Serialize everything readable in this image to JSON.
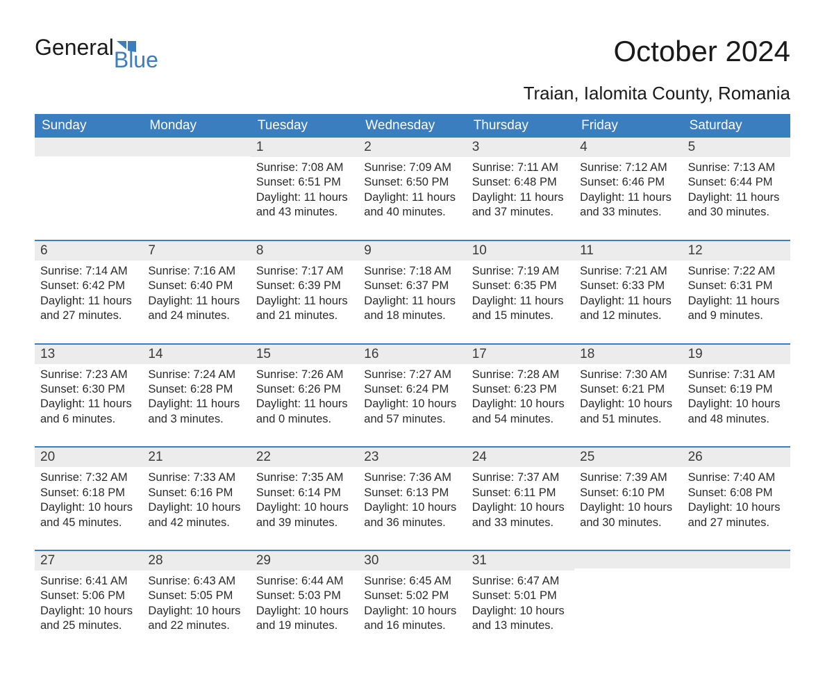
{
  "logo": {
    "part1": "General",
    "part2": "Blue"
  },
  "title": "October 2024",
  "location": "Traian, Ialomita County, Romania",
  "colors": {
    "header_bg": "#3a7ebf",
    "header_text": "#ffffff",
    "daynum_bg": "#ececec",
    "daynum_border": "#3a7ebf",
    "text": "#2a2a2a",
    "logo_blue": "#3a7ebf",
    "page_bg": "#ffffff"
  },
  "typography": {
    "title_fontsize": 42,
    "location_fontsize": 26,
    "logo_fontsize": 32,
    "dayheader_fontsize": 19,
    "daynum_fontsize": 19,
    "body_fontsize": 16.5
  },
  "calendar": {
    "columns": [
      "Sunday",
      "Monday",
      "Tuesday",
      "Wednesday",
      "Thursday",
      "Friday",
      "Saturday"
    ],
    "weeks": [
      [
        {
          "day": "",
          "sunrise": "",
          "sunset": "",
          "daylight": ""
        },
        {
          "day": "",
          "sunrise": "",
          "sunset": "",
          "daylight": ""
        },
        {
          "day": "1",
          "sunrise": "Sunrise: 7:08 AM",
          "sunset": "Sunset: 6:51 PM",
          "daylight": "Daylight: 11 hours and 43 minutes."
        },
        {
          "day": "2",
          "sunrise": "Sunrise: 7:09 AM",
          "sunset": "Sunset: 6:50 PM",
          "daylight": "Daylight: 11 hours and 40 minutes."
        },
        {
          "day": "3",
          "sunrise": "Sunrise: 7:11 AM",
          "sunset": "Sunset: 6:48 PM",
          "daylight": "Daylight: 11 hours and 37 minutes."
        },
        {
          "day": "4",
          "sunrise": "Sunrise: 7:12 AM",
          "sunset": "Sunset: 6:46 PM",
          "daylight": "Daylight: 11 hours and 33 minutes."
        },
        {
          "day": "5",
          "sunrise": "Sunrise: 7:13 AM",
          "sunset": "Sunset: 6:44 PM",
          "daylight": "Daylight: 11 hours and 30 minutes."
        }
      ],
      [
        {
          "day": "6",
          "sunrise": "Sunrise: 7:14 AM",
          "sunset": "Sunset: 6:42 PM",
          "daylight": "Daylight: 11 hours and 27 minutes."
        },
        {
          "day": "7",
          "sunrise": "Sunrise: 7:16 AM",
          "sunset": "Sunset: 6:40 PM",
          "daylight": "Daylight: 11 hours and 24 minutes."
        },
        {
          "day": "8",
          "sunrise": "Sunrise: 7:17 AM",
          "sunset": "Sunset: 6:39 PM",
          "daylight": "Daylight: 11 hours and 21 minutes."
        },
        {
          "day": "9",
          "sunrise": "Sunrise: 7:18 AM",
          "sunset": "Sunset: 6:37 PM",
          "daylight": "Daylight: 11 hours and 18 minutes."
        },
        {
          "day": "10",
          "sunrise": "Sunrise: 7:19 AM",
          "sunset": "Sunset: 6:35 PM",
          "daylight": "Daylight: 11 hours and 15 minutes."
        },
        {
          "day": "11",
          "sunrise": "Sunrise: 7:21 AM",
          "sunset": "Sunset: 6:33 PM",
          "daylight": "Daylight: 11 hours and 12 minutes."
        },
        {
          "day": "12",
          "sunrise": "Sunrise: 7:22 AM",
          "sunset": "Sunset: 6:31 PM",
          "daylight": "Daylight: 11 hours and 9 minutes."
        }
      ],
      [
        {
          "day": "13",
          "sunrise": "Sunrise: 7:23 AM",
          "sunset": "Sunset: 6:30 PM",
          "daylight": "Daylight: 11 hours and 6 minutes."
        },
        {
          "day": "14",
          "sunrise": "Sunrise: 7:24 AM",
          "sunset": "Sunset: 6:28 PM",
          "daylight": "Daylight: 11 hours and 3 minutes."
        },
        {
          "day": "15",
          "sunrise": "Sunrise: 7:26 AM",
          "sunset": "Sunset: 6:26 PM",
          "daylight": "Daylight: 11 hours and 0 minutes."
        },
        {
          "day": "16",
          "sunrise": "Sunrise: 7:27 AM",
          "sunset": "Sunset: 6:24 PM",
          "daylight": "Daylight: 10 hours and 57 minutes."
        },
        {
          "day": "17",
          "sunrise": "Sunrise: 7:28 AM",
          "sunset": "Sunset: 6:23 PM",
          "daylight": "Daylight: 10 hours and 54 minutes."
        },
        {
          "day": "18",
          "sunrise": "Sunrise: 7:30 AM",
          "sunset": "Sunset: 6:21 PM",
          "daylight": "Daylight: 10 hours and 51 minutes."
        },
        {
          "day": "19",
          "sunrise": "Sunrise: 7:31 AM",
          "sunset": "Sunset: 6:19 PM",
          "daylight": "Daylight: 10 hours and 48 minutes."
        }
      ],
      [
        {
          "day": "20",
          "sunrise": "Sunrise: 7:32 AM",
          "sunset": "Sunset: 6:18 PM",
          "daylight": "Daylight: 10 hours and 45 minutes."
        },
        {
          "day": "21",
          "sunrise": "Sunrise: 7:33 AM",
          "sunset": "Sunset: 6:16 PM",
          "daylight": "Daylight: 10 hours and 42 minutes."
        },
        {
          "day": "22",
          "sunrise": "Sunrise: 7:35 AM",
          "sunset": "Sunset: 6:14 PM",
          "daylight": "Daylight: 10 hours and 39 minutes."
        },
        {
          "day": "23",
          "sunrise": "Sunrise: 7:36 AM",
          "sunset": "Sunset: 6:13 PM",
          "daylight": "Daylight: 10 hours and 36 minutes."
        },
        {
          "day": "24",
          "sunrise": "Sunrise: 7:37 AM",
          "sunset": "Sunset: 6:11 PM",
          "daylight": "Daylight: 10 hours and 33 minutes."
        },
        {
          "day": "25",
          "sunrise": "Sunrise: 7:39 AM",
          "sunset": "Sunset: 6:10 PM",
          "daylight": "Daylight: 10 hours and 30 minutes."
        },
        {
          "day": "26",
          "sunrise": "Sunrise: 7:40 AM",
          "sunset": "Sunset: 6:08 PM",
          "daylight": "Daylight: 10 hours and 27 minutes."
        }
      ],
      [
        {
          "day": "27",
          "sunrise": "Sunrise: 6:41 AM",
          "sunset": "Sunset: 5:06 PM",
          "daylight": "Daylight: 10 hours and 25 minutes."
        },
        {
          "day": "28",
          "sunrise": "Sunrise: 6:43 AM",
          "sunset": "Sunset: 5:05 PM",
          "daylight": "Daylight: 10 hours and 22 minutes."
        },
        {
          "day": "29",
          "sunrise": "Sunrise: 6:44 AM",
          "sunset": "Sunset: 5:03 PM",
          "daylight": "Daylight: 10 hours and 19 minutes."
        },
        {
          "day": "30",
          "sunrise": "Sunrise: 6:45 AM",
          "sunset": "Sunset: 5:02 PM",
          "daylight": "Daylight: 10 hours and 16 minutes."
        },
        {
          "day": "31",
          "sunrise": "Sunrise: 6:47 AM",
          "sunset": "Sunset: 5:01 PM",
          "daylight": "Daylight: 10 hours and 13 minutes."
        },
        {
          "day": "",
          "sunrise": "",
          "sunset": "",
          "daylight": ""
        },
        {
          "day": "",
          "sunrise": "",
          "sunset": "",
          "daylight": ""
        }
      ]
    ]
  }
}
